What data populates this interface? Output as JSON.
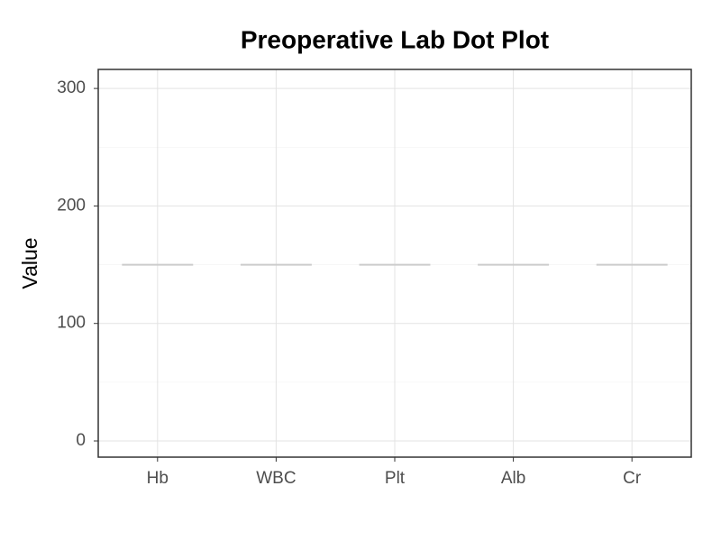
{
  "chart_data": {
    "type": "dot",
    "title": "Preoperative Lab Dot Plot",
    "y_label": "Value",
    "categories": [
      "Hb",
      "WBC",
      "Plt",
      "Alb",
      "Cr"
    ],
    "values": [
      150,
      150,
      150,
      150,
      150
    ],
    "color": "#cccccc",
    "ylim": [
      -13.8,
      316.2
    ],
    "yticks": [
      0,
      100,
      200,
      300
    ],
    "grid": true,
    "minor_grid": true
  }
}
